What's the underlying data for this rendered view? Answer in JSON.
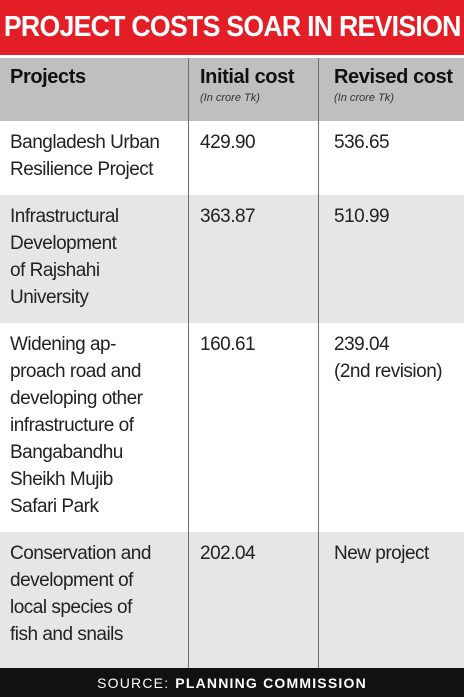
{
  "title": "PROJECT COSTS SOAR IN REVISION",
  "colors": {
    "title_bg": "#e41e26",
    "header_bg": "#bfbfbf",
    "row_alt": "#e6e6e6",
    "source_bg": "#111111"
  },
  "chart_data": {
    "type": "table",
    "title": "PROJECT COSTS SOAR IN REVISION",
    "columns": [
      {
        "label": "Projects",
        "sub": ""
      },
      {
        "label": "Initial cost",
        "sub": "(In crore Tk)"
      },
      {
        "label": "Revised cost",
        "sub": "(In crore Tk)"
      }
    ],
    "rows": [
      {
        "project": [
          "Bangladesh Urban",
          "Resilience Project"
        ],
        "initial": "429.90",
        "revised": [
          "536.65"
        ]
      },
      {
        "project": [
          "Infrastructural",
          "Development",
          "of Rajshahi",
          "University"
        ],
        "initial": "363.87",
        "revised": [
          "510.99"
        ]
      },
      {
        "project": [
          "Widening ap-",
          "proach road and",
          "developing other",
          "infrastructure of",
          "Bangabandhu",
          "Sheikh Mujib",
          "Safari Park"
        ],
        "initial": "160.61",
        "revised": [
          "239.04",
          "(2nd revision)"
        ]
      },
      {
        "project": [
          "Conservation and",
          "development of",
          "local species of",
          "fish and snails"
        ],
        "initial": "202.04",
        "revised": [
          "New project"
        ]
      }
    ]
  },
  "source": {
    "prefix": "SOURCE:",
    "name": "PLANNING COMMISSION"
  }
}
